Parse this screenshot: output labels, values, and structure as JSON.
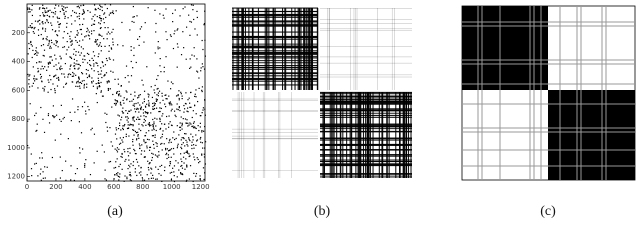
{
  "chart_data": {
    "type": "spy",
    "xlim": [
      0,
      1230
    ],
    "ylim": [
      0,
      1230
    ],
    "y_inverted": true,
    "xticks": [
      0,
      200,
      400,
      600,
      800,
      1000,
      1200
    ],
    "yticks": [
      200,
      400,
      600,
      800,
      1000,
      1200
    ]
  },
  "captions": [
    "(a)",
    "(b)",
    "(c)"
  ]
}
